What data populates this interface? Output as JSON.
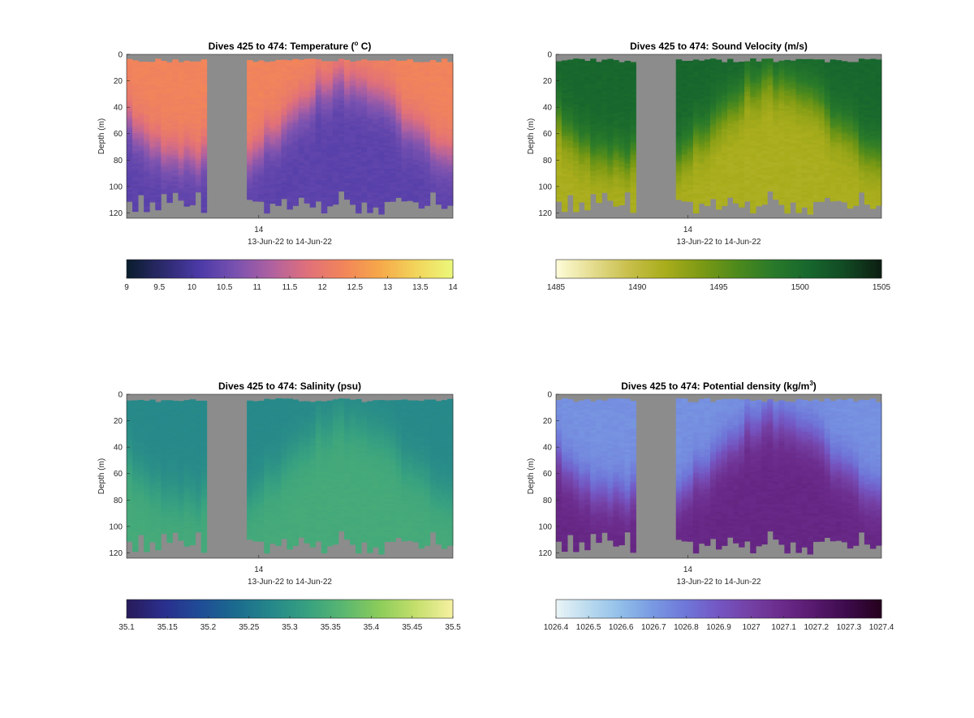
{
  "figure": {
    "background": "#ffffff",
    "gap_color": "#8c8c8c"
  },
  "chart_data": [
    {
      "type": "heatmap",
      "title": "Dives 425 to 474: Temperature (° C)",
      "xlabel": "13-Jun-22 to 14-Jun-22",
      "ylabel": "Depth (m)",
      "x_tick_labels": [
        "14"
      ],
      "y_ticks": [
        0,
        20,
        40,
        60,
        80,
        100,
        120
      ],
      "ylim": [
        124,
        0
      ],
      "dives": [
        425,
        474
      ],
      "gap_after_dive_index": 14,
      "gap_dive_count": 7,
      "surface_value": 12.3,
      "deep_value": 10.3,
      "colorbar": {
        "ticks": [
          9,
          9.5,
          10,
          10.5,
          11,
          11.5,
          12,
          12.5,
          13,
          13.5,
          14
        ],
        "tick_labels": [
          "9",
          "9.5",
          "10",
          "10.5",
          "11",
          "11.5",
          "12",
          "12.5",
          "13",
          "13.5",
          "14"
        ],
        "range": [
          9,
          14
        ],
        "colormap": [
          "#0b1d2e",
          "#2d2a6e",
          "#4b3aa8",
          "#7a52b0",
          "#b061a0",
          "#e0707a",
          "#f2855a",
          "#f6a84a",
          "#f2d45a",
          "#ecf77a"
        ]
      }
    },
    {
      "type": "heatmap",
      "title": "Dives 425 to 474: Sound Velocity (m/s)",
      "xlabel": "13-Jun-22 to 14-Jun-22",
      "ylabel": "Depth (m)",
      "x_tick_labels": [
        "14"
      ],
      "y_ticks": [
        0,
        20,
        40,
        60,
        80,
        100,
        120
      ],
      "ylim": [
        124,
        0
      ],
      "dives": [
        425,
        474
      ],
      "gap_after_dive_index": 14,
      "gap_dive_count": 7,
      "surface_value": 1500.5,
      "deep_value": 1491.5,
      "colorbar": {
        "ticks": [
          1485,
          1490,
          1495,
          1500,
          1505
        ],
        "tick_labels": [
          "1485",
          "1490",
          "1495",
          "1500",
          "1505"
        ],
        "range": [
          1485,
          1505
        ],
        "colormap": [
          "#fdfbd6",
          "#e4dc8e",
          "#c7bf4a",
          "#a9ad1c",
          "#7d9a14",
          "#4e8a1c",
          "#2a7a2a",
          "#17672e",
          "#124a24",
          "#0d1f12"
        ]
      }
    },
    {
      "type": "heatmap",
      "title": "Dives 425 to 474: Salinity (psu)",
      "xlabel": "13-Jun-22 to 14-Jun-22",
      "ylabel": "Depth (m)",
      "x_tick_labels": [
        "14"
      ],
      "y_ticks": [
        0,
        20,
        40,
        60,
        80,
        100,
        120
      ],
      "ylim": [
        124,
        0
      ],
      "dives": [
        425,
        474
      ],
      "gap_after_dive_index": 14,
      "gap_dive_count": 7,
      "surface_value": 35.28,
      "deep_value": 35.34,
      "colorbar": {
        "ticks": [
          35.1,
          35.15,
          35.2,
          35.25,
          35.3,
          35.35,
          35.4,
          35.45,
          35.5
        ],
        "tick_labels": [
          "35.1",
          "35.15",
          "35.2",
          "35.25",
          "35.3",
          "35.35",
          "35.4",
          "35.45",
          "35.5"
        ],
        "range": [
          35.1,
          35.5
        ],
        "colormap": [
          "#281c5c",
          "#2a2f8e",
          "#1f4c96",
          "#1b6b8e",
          "#26888a",
          "#37a180",
          "#5bb770",
          "#8ccc5a",
          "#c4df6c",
          "#f5f0a0"
        ]
      }
    },
    {
      "type": "heatmap",
      "title": "Dives 425 to 474: Potential density (kg/m3)",
      "xlabel": "13-Jun-22 to 14-Jun-22",
      "ylabel": "Depth (m)",
      "x_tick_labels": [
        "14"
      ],
      "y_ticks": [
        0,
        20,
        40,
        60,
        80,
        100,
        120
      ],
      "ylim": [
        124,
        0
      ],
      "dives": [
        425,
        474
      ],
      "gap_after_dive_index": 14,
      "gap_dive_count": 7,
      "surface_value": 1026.72,
      "deep_value": 1027.12,
      "colorbar": {
        "ticks": [
          1026.4,
          1026.5,
          1026.6,
          1026.7,
          1026.8,
          1026.9,
          1027,
          1027.1,
          1027.2,
          1027.3,
          1027.4
        ],
        "tick_labels": [
          "1026.4",
          "1026.5",
          "1026.6",
          "1026.7",
          "1026.8",
          "1026.9",
          "1027",
          "1027.1",
          "1027.2",
          "1027.3",
          "1027.4"
        ],
        "range": [
          1026.4,
          1027.4
        ],
        "colormap": [
          "#e8f3f6",
          "#b8d9ee",
          "#8fbde9",
          "#7898e2",
          "#6f76d8",
          "#7456c2",
          "#7440a4",
          "#6a2a8a",
          "#55196c",
          "#3c0a4a",
          "#26021e"
        ]
      }
    }
  ]
}
